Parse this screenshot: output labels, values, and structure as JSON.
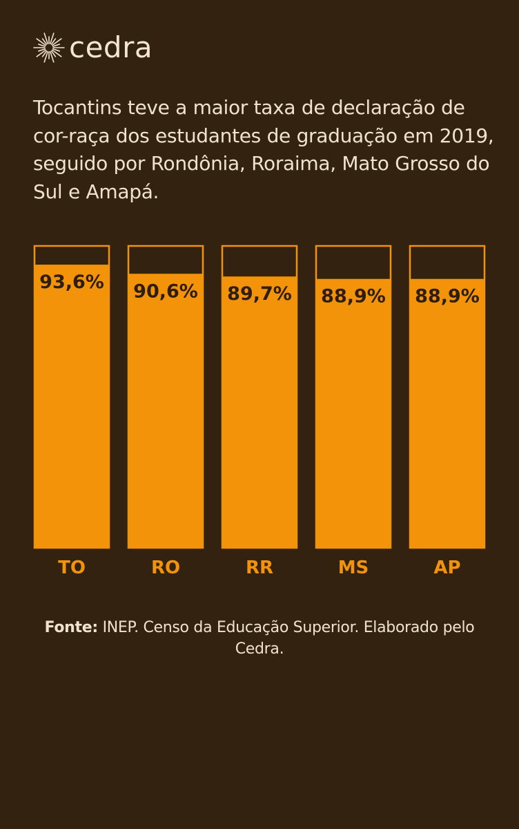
{
  "brand": {
    "name": "cedra",
    "logo_icon": "sun-burst-icon"
  },
  "headline": "Tocantins teve a maior taxa de declaração de cor-raça dos estudantes de graduação em 2019, seguido por Rondônia, Roraima, Mato Grosso do Sul e Amapá.",
  "source": {
    "lead": "Fonte:",
    "text": " INEP. Censo da Educação Superior. Elaborado pelo Cedra."
  },
  "colors": {
    "background": "#342211",
    "bar_fill": "#f2930a",
    "bar_outline": "#f2930a",
    "value_label": "#2f1e0f",
    "category_label": "#f2930a",
    "text": "#efe3d0"
  },
  "chart_data": {
    "type": "bar",
    "categories": [
      "TO",
      "RO",
      "RR",
      "MS",
      "AP"
    ],
    "values": [
      93.6,
      90.6,
      89.7,
      88.9,
      88.9
    ],
    "value_labels": [
      "93,6%",
      "90,6%",
      "89,7%",
      "88,9%",
      "88,9%"
    ],
    "ylim": [
      0,
      100
    ],
    "unit": "%",
    "grid": false,
    "title": "",
    "xlabel": "",
    "ylabel": ""
  }
}
